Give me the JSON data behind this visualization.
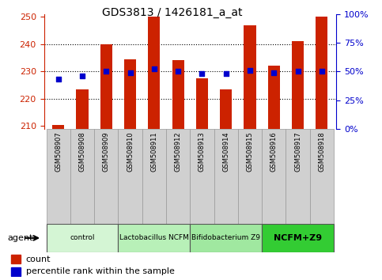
{
  "title": "GDS3813 / 1426181_a_at",
  "samples": [
    "GSM508907",
    "GSM508908",
    "GSM508909",
    "GSM508910",
    "GSM508911",
    "GSM508912",
    "GSM508913",
    "GSM508914",
    "GSM508915",
    "GSM508916",
    "GSM508917",
    "GSM508918"
  ],
  "counts": [
    210.5,
    223.5,
    240.0,
    234.5,
    250.0,
    234.0,
    227.5,
    223.5,
    247.0,
    232.0,
    241.0,
    250.0
  ],
  "percentiles": [
    43,
    46,
    50,
    49,
    52,
    50,
    48,
    48,
    51,
    49,
    50,
    50
  ],
  "bar_color": "#cc2200",
  "dot_color": "#0000cc",
  "ylim_left": [
    209,
    251
  ],
  "ylim_right": [
    0,
    100
  ],
  "yticks_left": [
    210,
    220,
    230,
    240,
    250
  ],
  "yticks_right": [
    0,
    25,
    50,
    75,
    100
  ],
  "ytick_labels_right": [
    "0%",
    "25%",
    "50%",
    "75%",
    "100%"
  ],
  "groups": [
    {
      "label": "control",
      "start": 0,
      "end": 2,
      "color": "#d4f5d4"
    },
    {
      "label": "Lactobacillus NCFM",
      "start": 3,
      "end": 5,
      "color": "#b8f0b8"
    },
    {
      "label": "Bifidobacterium Z9",
      "start": 6,
      "end": 8,
      "color": "#a0e8a0"
    },
    {
      "label": "NCFM+Z9",
      "start": 9,
      "end": 11,
      "color": "#33cc33"
    }
  ],
  "bar_bottom": 209,
  "legend_count_color": "#cc2200",
  "legend_pct_color": "#0000cc",
  "agent_label": "agent",
  "background_color": "#ffffff",
  "tick_label_color_left": "#cc2200",
  "tick_label_color_right": "#0000cc",
  "grid_yticks": [
    220,
    230,
    240
  ],
  "box_color": "#d0d0d0",
  "box_edge_color": "#999999"
}
